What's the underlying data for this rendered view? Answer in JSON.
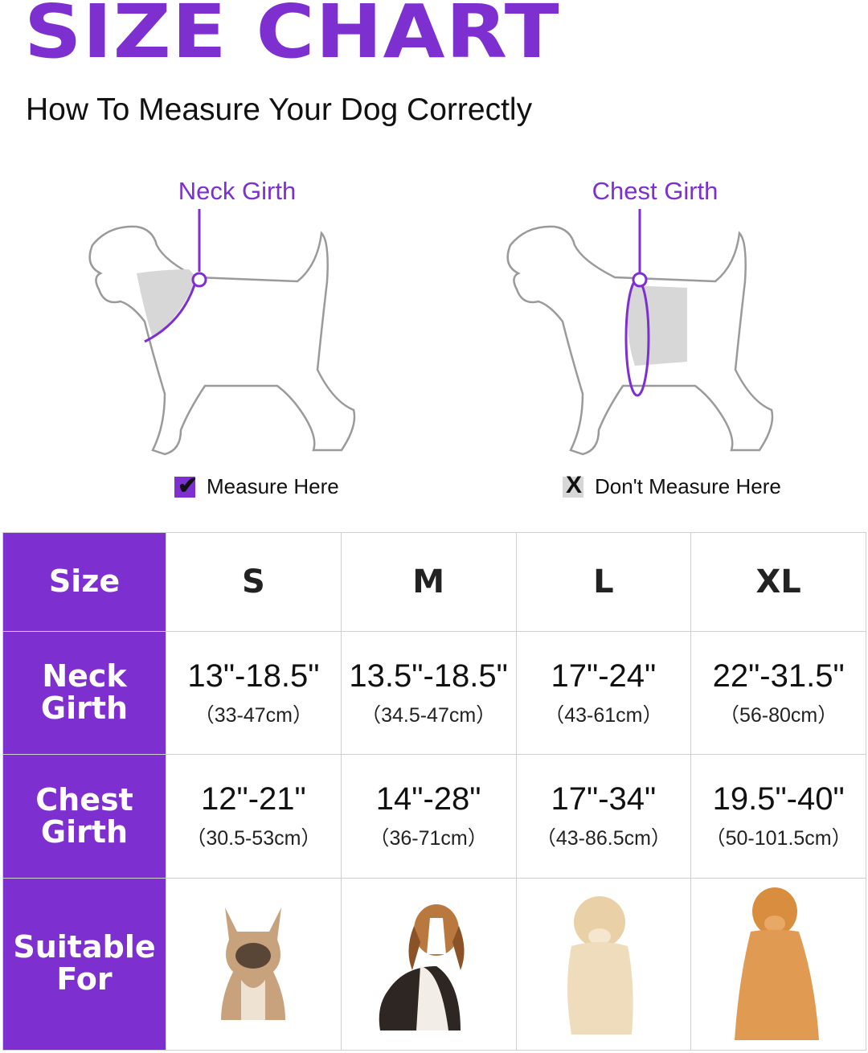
{
  "header": {
    "title": "SIZE CHART",
    "subtitle": "How To Measure Your Dog Correctly"
  },
  "diagrams": {
    "neck_label": "Neck Girth",
    "chest_label": "Chest Girth"
  },
  "legend": {
    "measure_text": "Measure Here",
    "measure_mark": "✔",
    "dont_text": "Don't Measure Here",
    "dont_mark": "X"
  },
  "colors": {
    "accent": "#7e2fd0",
    "highlight_gray": "#d7d7d7"
  },
  "table": {
    "row_headers": {
      "size": "Size",
      "neck_line1": "Neck",
      "neck_line2": "Girth",
      "chest_line1": "Chest",
      "chest_line2": "Girth",
      "suitable_line1": "Suitable",
      "suitable_line2": "For"
    },
    "sizes": [
      "S",
      "M",
      "L",
      "XL"
    ],
    "neck": [
      {
        "in": "13\"-18.5\"",
        "cm": "（33-47cm）"
      },
      {
        "in": "13.5\"-18.5\"",
        "cm": "（34.5-47cm）"
      },
      {
        "in": "17\"-24\"",
        "cm": "（43-61cm）"
      },
      {
        "in": "22\"-31.5\"",
        "cm": "（56-80cm）"
      }
    ],
    "chest": [
      {
        "in": "12\"-21\"",
        "cm": "（30.5-53cm）"
      },
      {
        "in": "14\"-28\"",
        "cm": "（36-71cm）"
      },
      {
        "in": "17\"-34\"",
        "cm": "（43-86.5cm）"
      },
      {
        "in": "19.5\"-40\"",
        "cm": "（50-101.5cm）"
      }
    ],
    "dogs": [
      "french-bulldog-icon",
      "beagle-icon",
      "labrador-icon",
      "golden-retriever-icon"
    ]
  }
}
